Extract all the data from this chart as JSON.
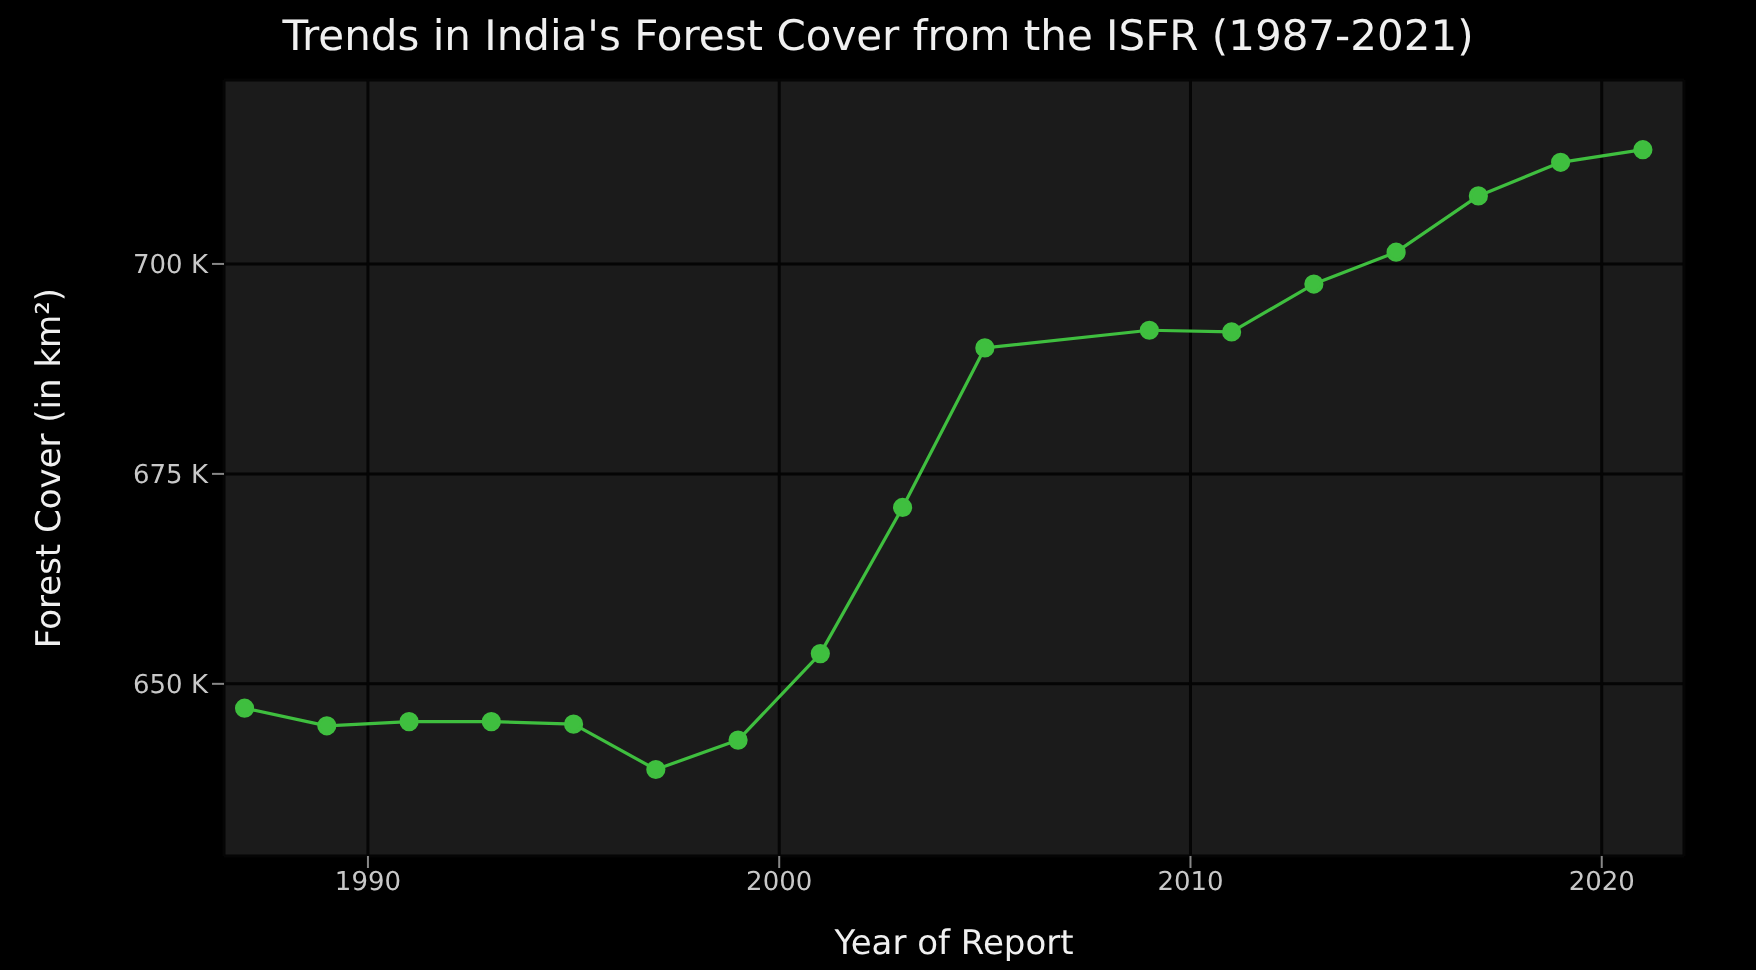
{
  "chart_data": {
    "type": "line",
    "title": "Trends in India's Forest Cover from the ISFR (1987-2021)",
    "xlabel": "Year of Report",
    "ylabel": "Forest Cover (in km²)",
    "x": [
      1987,
      1989,
      1991,
      1993,
      1995,
      1997,
      1999,
      2001,
      2003,
      2005,
      2009,
      2011,
      2013,
      2015,
      2017,
      2019,
      2021
    ],
    "series": [
      {
        "color": "#3fbf3f",
        "values": [
          647100,
          645000,
          645500,
          645500,
          645200,
          639800,
          643300,
          653600,
          671000,
          690000,
          692100,
          691900,
          697600,
          701400,
          708100,
          712100,
          713600
        ]
      }
    ],
    "xlim": [
      1986.5,
      2022
    ],
    "xticks": [
      1990,
      2000,
      2010,
      2020
    ],
    "ylim": [
      629500,
      721900
    ],
    "yticks": [
      {
        "value": 650000,
        "label": "650 K"
      },
      {
        "value": 675000,
        "label": "675 K"
      },
      {
        "value": 700000,
        "label": "700 K"
      }
    ],
    "grid": true,
    "marker": "circle",
    "line_style": "solid"
  }
}
